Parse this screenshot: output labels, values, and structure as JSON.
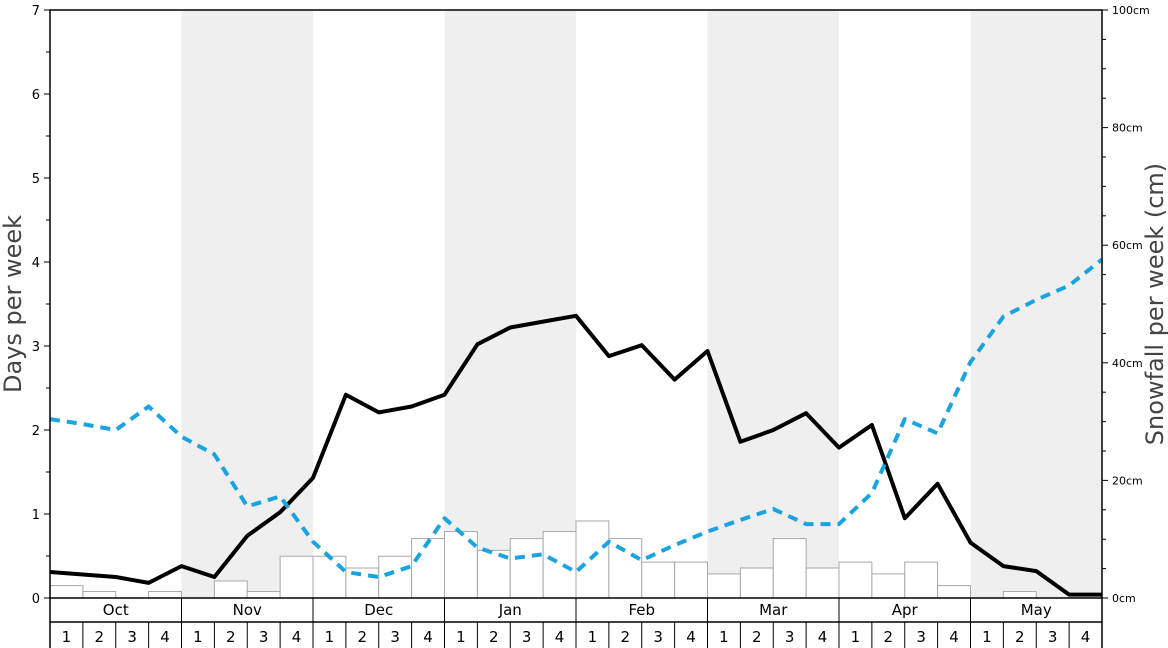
{
  "chart_data": {
    "type": "bar",
    "left_axis": {
      "label": "Days per week",
      "ylim": [
        0,
        7
      ],
      "ticks": [
        "0",
        "1",
        "2",
        "3",
        "4",
        "5",
        "6",
        "7"
      ]
    },
    "right_axis": {
      "label": "Snowfall per week (cm)",
      "ylim": [
        0,
        100
      ],
      "ticks": [
        "0cm",
        "20cm",
        "40cm",
        "60cm",
        "80cm",
        "100cm"
      ]
    },
    "months": [
      "Oct",
      "Nov",
      "Dec",
      "Jan",
      "Feb",
      "Mar",
      "Apr",
      "May"
    ],
    "weeks": [
      "1",
      "2",
      "3",
      "4"
    ],
    "shaded_months": [
      "Nov",
      "Jan",
      "Mar",
      "May"
    ],
    "grid": false,
    "series": [
      {
        "type": "bar",
        "axis": "right",
        "values": [
          2.1,
          1.1,
          0,
          1.1,
          0,
          2.9,
          1.1,
          7.1,
          7.1,
          5.1,
          7.1,
          10.1,
          11.3,
          8.1,
          10.1,
          11.3,
          13.1,
          10.1,
          6.1,
          6.1,
          4.1,
          5.1,
          10.1,
          5.1,
          6.1,
          4.1,
          6.1,
          2.1,
          0,
          1.1,
          0,
          0
        ],
        "color": "#ffffff",
        "stroke": "#a8a8a8"
      },
      {
        "type": "line",
        "axis": "left",
        "values": [
          0.31,
          0.28,
          0.25,
          0.18,
          0.38,
          0.25,
          0.74,
          1.02,
          1.43,
          2.42,
          2.21,
          2.28,
          2.42,
          3.02,
          3.22,
          3.29,
          3.36,
          2.88,
          3.01,
          2.6,
          2.94,
          1.86,
          2.0,
          2.2,
          1.79,
          2.06,
          0.95,
          1.36,
          0.66,
          0.38,
          0.32,
          0.04,
          0.04
        ],
        "color": "#000000",
        "style": "solid"
      },
      {
        "type": "line",
        "axis": "left",
        "values": [
          2.13,
          2.07,
          2.0,
          2.28,
          1.92,
          1.71,
          1.09,
          1.21,
          0.67,
          0.31,
          0.25,
          0.38,
          0.95,
          0.6,
          0.47,
          0.52,
          0.31,
          0.67,
          0.45,
          0.63,
          0.79,
          0.93,
          1.06,
          0.88,
          0.88,
          1.25,
          2.13,
          1.96,
          2.81,
          3.35,
          3.55,
          3.72,
          4.03
        ],
        "color": "#1aa3e0",
        "style": "dashed"
      }
    ]
  }
}
